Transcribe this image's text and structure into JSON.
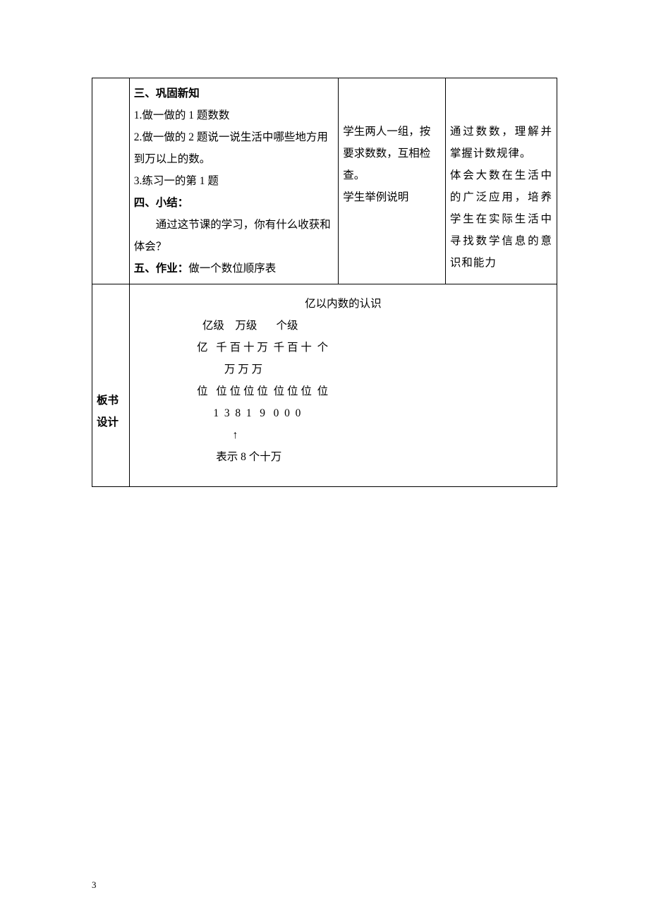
{
  "row1": {
    "colA": "",
    "colB": {
      "h3": "三、巩固新知",
      "l1": "1.做一做的 1 题数数",
      "l2": "2.做一做的 2 题说一说生活中哪些地方用到万以上的数。",
      "l3": "3.练习一的第 1 题",
      "h4": "四、小结：",
      "l4": "通过这节课的学习，你有什么收获和体会？",
      "h5a": "五、作业：",
      "h5b": "做一个数位顺序表"
    },
    "colC": {
      "p1": "学生两人一组，按要求数数，互相检查。",
      "p2": "学生举例说明"
    },
    "colD": {
      "p1": "通过数数，理解并掌握计数规律。",
      "p2": "体会大数在生活中的广泛应用，培养学生在实际生活中寻找数学信息的意识和能力"
    }
  },
  "row2": {
    "label_l1": "板书",
    "label_l2": "设计",
    "board": {
      "title": "亿以内数的认识",
      "line_levels": "                       亿级    万级       个级",
      "line_units1": "                     亿   千 百 十 万  千 百 十  个",
      "line_units2": "                               万 万 万",
      "line_units3": "                     位   位 位 位 位  位 位 位  位",
      "line_digits": "                           1  3  8  1   9   0  0  0",
      "line_arrow": "                                  ↑",
      "line_note": "                            表示 8 个十万"
    }
  },
  "pageNumber": "3"
}
